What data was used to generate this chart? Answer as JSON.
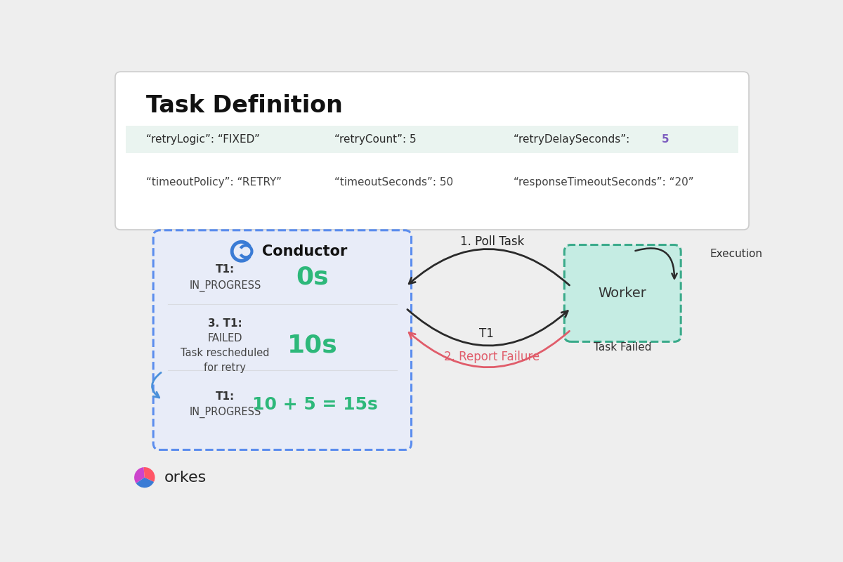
{
  "bg_color": "#eeeeee",
  "card_bg": "#ffffff",
  "card_border": "#cccccc",
  "title": "Task Definition",
  "title_fontsize": 24,
  "row1_highlight_bg": "#eaf4f0",
  "conductor_box_bg": "#e8ecf8",
  "conductor_box_border": "#5b8dee",
  "worker_box_bg": "#c5ece3",
  "worker_box_border": "#3aaa8a",
  "conductor_label": "Conductor",
  "worker_label": "Worker",
  "task_failed_label": "Task Failed",
  "execution_label": "Execution",
  "poll_task_label": "1. Poll Task",
  "t1_label": "T1",
  "report_failure_label": "2. Report Failure",
  "green_time_color": "#2db87a",
  "blue_arrow_color": "#4a90d9",
  "red_arrow_color": "#e05c6a",
  "black_arrow_color": "#2a2a2a",
  "highlight_purple": "#7c5cbf",
  "report_failure_color": "#e05c6a",
  "row1_text_color": "#2a2a2a",
  "row2_text_color": "#444444",
  "orkes_text": "orkes"
}
